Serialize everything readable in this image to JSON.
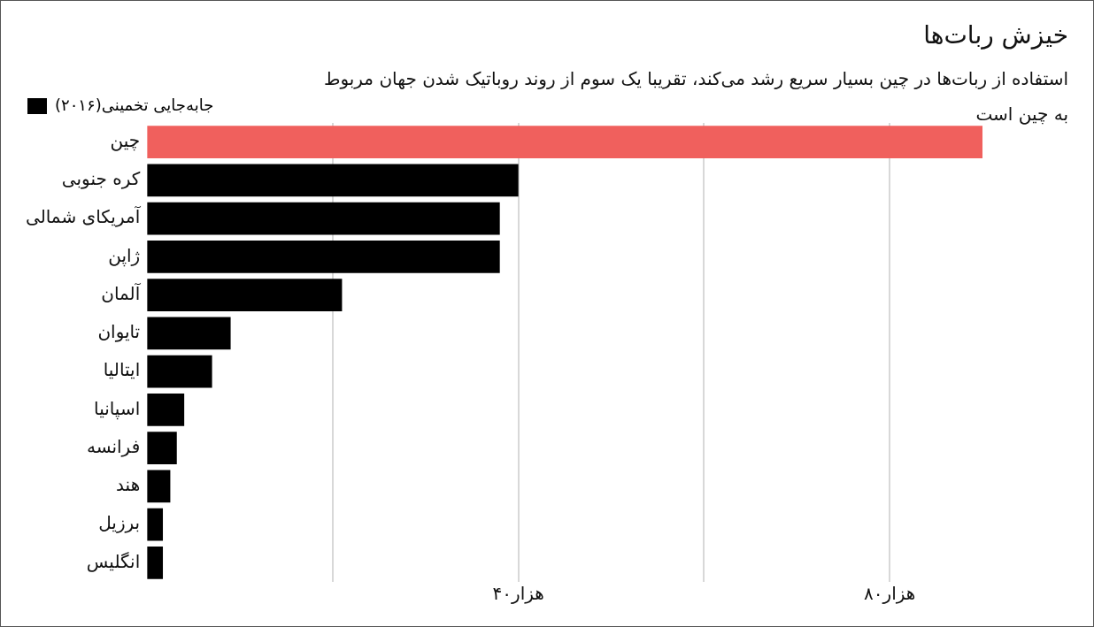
{
  "chart_data": {
    "type": "bar",
    "orientation": "horizontal",
    "title": "خیزش ربات‌ها",
    "subtitle": "استفاده از ربات‌ها در چین بسیار سریع رشد می‌کند، تقریبا یک سوم از روند روباتیک شدن جهان مربوط به چین است",
    "categories": [
      "چین",
      "کره جنوبی",
      "آمریکای شمالی",
      "ژاپن",
      "آلمان",
      "تایوان",
      "ایتالیا",
      "اسپانیا",
      "فرانسه",
      "هند",
      "برزیل",
      "انگلیس"
    ],
    "series": [
      {
        "name": "جابه‌جایی تخمینی(۲۰۱۶)",
        "color": "#000000",
        "colors": [
          "#f0605d",
          "#000000",
          "#000000",
          "#000000",
          "#000000",
          "#000000",
          "#000000",
          "#000000",
          "#000000",
          "#000000",
          "#000000",
          "#000000"
        ],
        "values": [
          90,
          40,
          38,
          38,
          21,
          9,
          7,
          4,
          3.2,
          2.5,
          1.7,
          1.7
        ]
      }
    ],
    "xlim": [
      0,
      90
    ],
    "xticks": [
      {
        "value": 20,
        "label": null
      },
      {
        "value": 40,
        "label": "۴۰هزار"
      },
      {
        "value": 60,
        "label": null
      },
      {
        "value": 80,
        "label": "۸۰هزار"
      }
    ],
    "grid": "x",
    "legend": "top left"
  }
}
